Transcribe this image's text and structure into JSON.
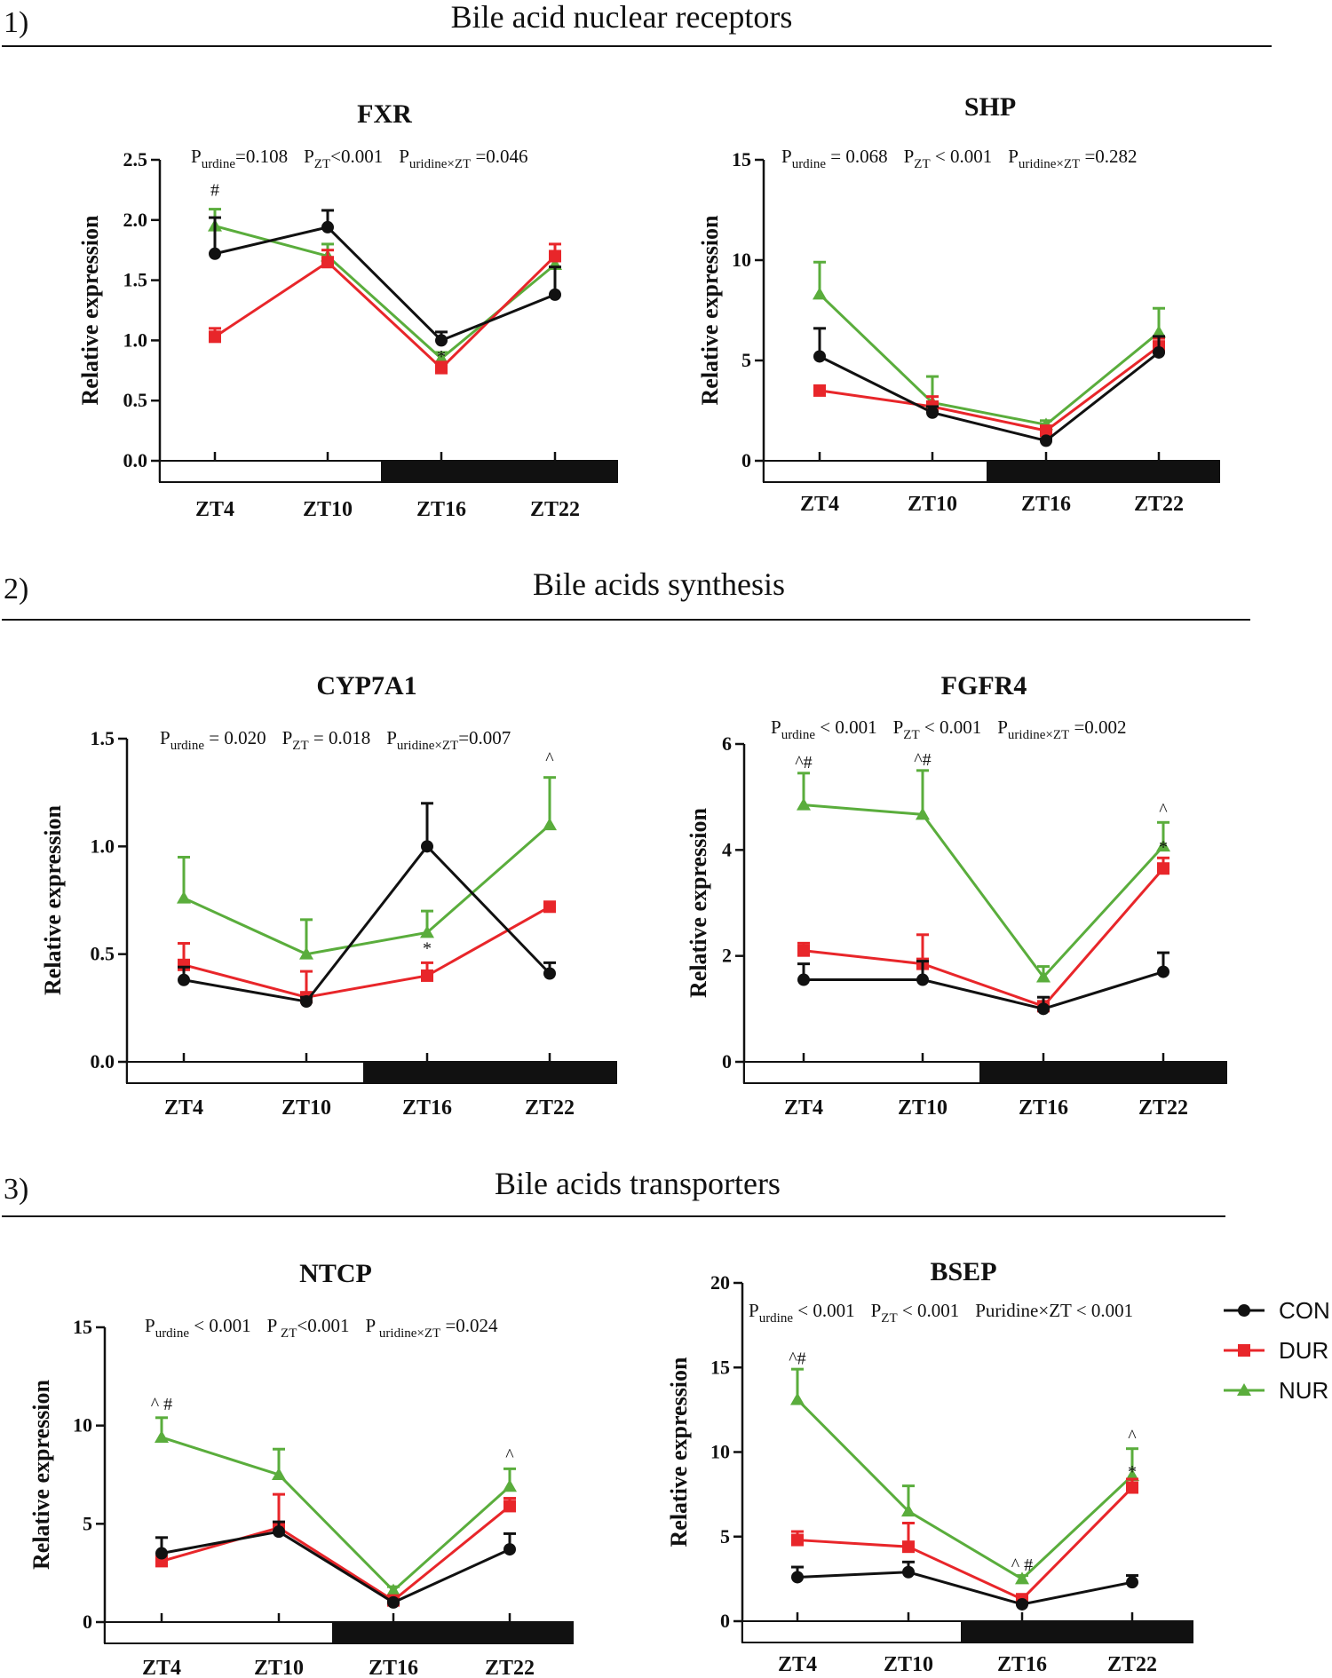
{
  "sections": [
    {
      "number": "1)",
      "title": "Bile acid nuclear receptors"
    },
    {
      "number": "2)",
      "title": "Bile acids  synthesis"
    },
    {
      "number": "3)",
      "title": "Bile acids  transporters"
    }
  ],
  "legend": [
    {
      "label": "CON",
      "color": "#111111",
      "marker": "circle"
    },
    {
      "label": "DUR",
      "color": "#e8262a",
      "marker": "square"
    },
    {
      "label": "NUR",
      "color": "#5aad3c",
      "marker": "triangle"
    }
  ],
  "chart_data": [
    {
      "type": "line",
      "title": "FXR",
      "ylabel": "Relative  expression",
      "categories": [
        "ZT4",
        "ZT10",
        "ZT16",
        "ZT22"
      ],
      "ylim": [
        0,
        2.5
      ],
      "yticks": [
        "0.0",
        "0.5",
        "1.0",
        "1.5",
        "2.0",
        "2.5"
      ],
      "ytick_values": [
        0,
        0.5,
        1.0,
        1.5,
        2.0,
        2.5
      ],
      "light_dark_bar": [
        "light",
        "light",
        "dark",
        "dark"
      ],
      "stats": [
        {
          "main": "P",
          "sub": "urdine",
          "rest": "=0.108"
        },
        {
          "main": "P",
          "sub": "ZT",
          "rest": "<0.001"
        },
        {
          "main": "P",
          "sub": "uridine×ZT",
          "rest": " =0.046"
        }
      ],
      "series": [
        {
          "name": "CON",
          "values": [
            1.72,
            1.94,
            1.0,
            1.38
          ],
          "errors": [
            0.3,
            0.14,
            0.07,
            0.23
          ]
        },
        {
          "name": "DUR",
          "values": [
            1.03,
            1.65,
            0.77,
            1.7
          ],
          "errors": [
            0.07,
            0.1,
            0.05,
            0.1
          ]
        },
        {
          "name": "NUR",
          "values": [
            1.95,
            1.7,
            0.85,
            1.63
          ],
          "errors": [
            0.14,
            0.1,
            0.05,
            0.1
          ]
        }
      ],
      "annotations": [
        {
          "text": "#",
          "category": 0,
          "value": 2.2
        },
        {
          "text": "*",
          "category": 2,
          "value": 0.82
        }
      ]
    },
    {
      "type": "line",
      "title": "SHP",
      "ylabel": "Relative  expression",
      "categories": [
        "ZT4",
        "ZT10",
        "ZT16",
        "ZT22"
      ],
      "ylim": [
        0,
        15
      ],
      "yticks": [
        "0",
        "5",
        "10",
        "15"
      ],
      "ytick_values": [
        0,
        5,
        10,
        15
      ],
      "light_dark_bar": [
        "light",
        "light",
        "dark",
        "dark"
      ],
      "stats": [
        {
          "main": "P",
          "sub": "urdine",
          "rest": " = 0.068"
        },
        {
          "main": "P",
          "sub": "ZT",
          "rest": " < 0.001"
        },
        {
          "main": "P",
          "sub": "uridine×ZT",
          "rest": " =0.282"
        }
      ],
      "series": [
        {
          "name": "CON",
          "values": [
            5.2,
            2.4,
            1.0,
            5.4
          ],
          "errors": [
            1.4,
            0.3,
            0.1,
            0.8
          ]
        },
        {
          "name": "DUR",
          "values": [
            3.5,
            2.7,
            1.5,
            5.7
          ],
          "errors": [
            0.2,
            0.5,
            0.2,
            0.4
          ]
        },
        {
          "name": "NUR",
          "values": [
            8.3,
            2.9,
            1.8,
            6.4
          ],
          "errors": [
            1.6,
            1.3,
            0.2,
            1.2
          ]
        }
      ],
      "annotations": []
    },
    {
      "type": "line",
      "title": "CYP7A1",
      "ylabel": "Relative  expression",
      "categories": [
        "ZT4",
        "ZT10",
        "ZT16",
        "ZT22"
      ],
      "ylim": [
        0,
        1.5
      ],
      "yticks": [
        "0.0",
        "0.5",
        "1.0",
        "1.5"
      ],
      "ytick_values": [
        0,
        0.5,
        1.0,
        1.5
      ],
      "light_dark_bar": [
        "light",
        "light",
        "dark",
        "dark"
      ],
      "stats": [
        {
          "main": "P",
          "sub": "urdine",
          "rest": " = 0.020"
        },
        {
          "main": "P",
          "sub": "ZT",
          "rest": " = 0.018"
        },
        {
          "main": "P",
          "sub": "uridine×ZT",
          "rest": "=0.007"
        }
      ],
      "series": [
        {
          "name": "CON",
          "values": [
            0.38,
            0.28,
            1.0,
            0.41
          ],
          "errors": [
            0.06,
            0.02,
            0.2,
            0.05
          ]
        },
        {
          "name": "DUR",
          "values": [
            0.45,
            0.3,
            0.4,
            0.72
          ],
          "errors": [
            0.1,
            0.12,
            0.06,
            0.02
          ]
        },
        {
          "name": "NUR",
          "values": [
            0.76,
            0.5,
            0.6,
            1.1
          ],
          "errors": [
            0.19,
            0.16,
            0.1,
            0.22
          ]
        }
      ],
      "annotations": [
        {
          "text": "*",
          "category": 2,
          "value": 0.5
        },
        {
          "text": "^",
          "category": 3,
          "value": 1.38
        }
      ]
    },
    {
      "type": "line",
      "title": "FGFR4",
      "ylabel": "Relative  expression",
      "categories": [
        "ZT4",
        "ZT10",
        "ZT16",
        "ZT22"
      ],
      "ylim": [
        0,
        6
      ],
      "yticks": [
        "0",
        "2",
        "4",
        "6"
      ],
      "ytick_values": [
        0,
        2,
        4,
        6
      ],
      "light_dark_bar": [
        "light",
        "light",
        "dark",
        "dark"
      ],
      "stats": [
        {
          "main": "P",
          "sub": "urdine",
          "rest": " < 0.001"
        },
        {
          "main": "P",
          "sub": "ZT",
          "rest": " < 0.001"
        },
        {
          "main": "P",
          "sub": "uridine×ZT",
          "rest": " =0.002"
        }
      ],
      "series": [
        {
          "name": "CON",
          "values": [
            1.55,
            1.55,
            1.0,
            1.7
          ],
          "errors": [
            0.3,
            0.35,
            0.22,
            0.36
          ]
        },
        {
          "name": "DUR",
          "values": [
            2.1,
            1.85,
            1.05,
            3.65
          ],
          "errors": [
            0.14,
            0.55,
            0.05,
            0.2
          ]
        },
        {
          "name": "NUR",
          "values": [
            4.85,
            4.67,
            1.6,
            4.07
          ],
          "errors": [
            0.6,
            0.83,
            0.2,
            0.45
          ]
        }
      ],
      "annotations": [
        {
          "text": "^#",
          "category": 0,
          "value": 5.55
        },
        {
          "text": "^#",
          "category": 1,
          "value": 5.6
        },
        {
          "text": "^",
          "category": 3,
          "value": 4.65
        },
        {
          "text": "*",
          "category": 3,
          "value": 3.95
        }
      ]
    },
    {
      "type": "line",
      "title": "NTCP",
      "ylabel": "Relative  expression",
      "categories": [
        "ZT4",
        "ZT10",
        "ZT16",
        "ZT22"
      ],
      "ylim": [
        0,
        15
      ],
      "yticks": [
        "0",
        "5",
        "10",
        "15"
      ],
      "ytick_values": [
        0,
        5,
        10,
        15
      ],
      "light_dark_bar": [
        "light",
        "light",
        "dark",
        "dark"
      ],
      "stats": [
        {
          "main": "P",
          "sub": "urdine",
          "rest": " < 0.001"
        },
        {
          "main": "P",
          "sub": " ZT",
          "rest": "<0.001"
        },
        {
          "main": "P",
          "sub": " uridine×ZT",
          "rest": " =0.024"
        }
      ],
      "series": [
        {
          "name": "CON",
          "values": [
            3.5,
            4.6,
            1.0,
            3.7
          ],
          "errors": [
            0.8,
            0.5,
            0.1,
            0.8
          ]
        },
        {
          "name": "DUR",
          "values": [
            3.1,
            4.8,
            1.1,
            5.9
          ],
          "errors": [
            0.2,
            1.7,
            0.1,
            0.4
          ]
        },
        {
          "name": "NUR",
          "values": [
            9.4,
            7.5,
            1.6,
            6.9
          ],
          "errors": [
            1.0,
            1.3,
            0.2,
            0.9
          ]
        }
      ],
      "annotations": [
        {
          "text": "^ #",
          "category": 0,
          "value": 10.8
        },
        {
          "text": "^",
          "category": 3,
          "value": 8.2
        }
      ]
    },
    {
      "type": "line",
      "title": "BSEP",
      "ylabel": "Relative  expression",
      "categories": [
        "ZT4",
        "ZT10",
        "ZT16",
        "ZT22"
      ],
      "ylim": [
        0,
        20
      ],
      "yticks": [
        "0",
        "5",
        "10",
        "15",
        "20"
      ],
      "ytick_values": [
        0,
        5,
        10,
        15,
        20
      ],
      "light_dark_bar": [
        "light",
        "light",
        "dark",
        "dark"
      ],
      "stats": [
        {
          "main": "P",
          "sub": "urdine",
          "rest": " < 0.001"
        },
        {
          "main": "P",
          "sub": "ZT",
          "rest": " < 0.001"
        },
        {
          "main": "Puridine×ZT",
          "sub": "",
          "rest": " < 0.001"
        }
      ],
      "series": [
        {
          "name": "CON",
          "values": [
            2.6,
            2.9,
            1.0,
            2.3
          ],
          "errors": [
            0.6,
            0.6,
            0.1,
            0.4
          ]
        },
        {
          "name": "DUR",
          "values": [
            4.8,
            4.4,
            1.3,
            7.9
          ],
          "errors": [
            0.5,
            1.4,
            0.2,
            0.5
          ]
        },
        {
          "name": "NUR",
          "values": [
            13.1,
            6.5,
            2.5,
            8.6
          ],
          "errors": [
            1.8,
            1.5,
            0.2,
            1.6
          ]
        }
      ],
      "annotations": [
        {
          "text": "^#",
          "category": 0,
          "value": 15.2
        },
        {
          "text": "^ #",
          "category": 2,
          "value": 3.0
        },
        {
          "text": "^",
          "category": 3,
          "value": 10.6
        },
        {
          "text": "*",
          "category": 3,
          "value": 8.5
        }
      ]
    }
  ]
}
